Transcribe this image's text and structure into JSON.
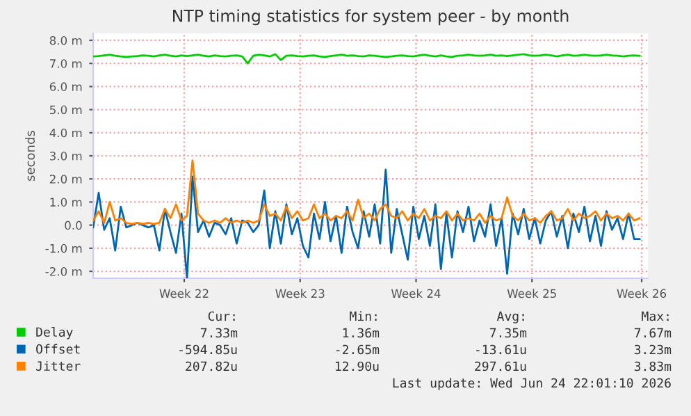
{
  "chart_data": {
    "type": "line",
    "title": "NTP timing statistics for system peer - by month",
    "ylabel": "seconds",
    "x": [
      "2026-05-23T18:00",
      "2026-05-24T02:00",
      "2026-05-24T10:00",
      "2026-05-24T18:00",
      "2026-05-25T02:00",
      "2026-05-25T10:00",
      "2026-05-25T18:00",
      "2026-05-26T02:00",
      "2026-05-26T10:00",
      "2026-05-26T18:00",
      "2026-05-27T02:00",
      "2026-05-27T10:00",
      "2026-05-27T18:00",
      "2026-05-28T02:00",
      "2026-05-28T10:00",
      "2026-05-28T18:00",
      "2026-05-29T02:00",
      "2026-05-29T10:00",
      "2026-05-29T18:00",
      "2026-05-30T02:00",
      "2026-05-30T10:00",
      "2026-05-30T18:00",
      "2026-05-31T02:00",
      "2026-05-31T10:00",
      "2026-05-31T18:00",
      "2026-06-01T02:00",
      "2026-06-01T10:00",
      "2026-06-01T18:00",
      "2026-06-02T02:00",
      "2026-06-02T10:00",
      "2026-06-02T18:00",
      "2026-06-03T02:00",
      "2026-06-03T10:00",
      "2026-06-03T18:00",
      "2026-06-04T02:00",
      "2026-06-04T10:00",
      "2026-06-04T18:00",
      "2026-06-05T02:00",
      "2026-06-05T10:00",
      "2026-06-05T18:00",
      "2026-06-06T02:00",
      "2026-06-06T10:00",
      "2026-06-06T18:00",
      "2026-06-07T02:00",
      "2026-06-07T10:00",
      "2026-06-07T18:00",
      "2026-06-08T02:00",
      "2026-06-08T10:00",
      "2026-06-08T18:00",
      "2026-06-09T02:00",
      "2026-06-09T10:00",
      "2026-06-09T18:00",
      "2026-06-10T02:00",
      "2026-06-10T10:00",
      "2026-06-10T18:00",
      "2026-06-11T02:00",
      "2026-06-11T10:00",
      "2026-06-11T18:00",
      "2026-06-12T02:00",
      "2026-06-12T10:00",
      "2026-06-12T18:00",
      "2026-06-13T02:00",
      "2026-06-13T10:00",
      "2026-06-13T18:00",
      "2026-06-14T02:00",
      "2026-06-14T10:00",
      "2026-06-14T18:00",
      "2026-06-15T02:00",
      "2026-06-15T10:00",
      "2026-06-15T18:00",
      "2026-06-16T02:00",
      "2026-06-16T10:00",
      "2026-06-16T18:00",
      "2026-06-17T02:00",
      "2026-06-17T10:00",
      "2026-06-17T18:00",
      "2026-06-18T02:00",
      "2026-06-18T10:00",
      "2026-06-18T18:00",
      "2026-06-19T02:00",
      "2026-06-19T10:00",
      "2026-06-19T18:00",
      "2026-06-20T02:00",
      "2026-06-20T10:00",
      "2026-06-20T18:00",
      "2026-06-21T02:00",
      "2026-06-21T10:00",
      "2026-06-21T18:00",
      "2026-06-22T02:00",
      "2026-06-22T10:00",
      "2026-06-22T18:00",
      "2026-06-23T02:00",
      "2026-06-23T10:00",
      "2026-06-23T18:00",
      "2026-06-24T02:00",
      "2026-06-24T10:00",
      "2026-06-24T18:00",
      "2026-06-25T02:00",
      "2026-06-25T10:00",
      "2026-06-25T18:00"
    ],
    "series": [
      {
        "name": "Delay",
        "color": "#00cc00",
        "values": [
          7.3,
          7.32,
          7.35,
          7.38,
          7.33,
          7.3,
          7.28,
          7.3,
          7.32,
          7.35,
          7.33,
          7.3,
          7.35,
          7.38,
          7.33,
          7.3,
          7.35,
          7.32,
          7.35,
          7.38,
          7.33,
          7.3,
          7.35,
          7.32,
          7.3,
          7.33,
          7.35,
          7.3,
          7.0,
          7.33,
          7.38,
          7.35,
          7.3,
          7.4,
          7.15,
          7.33,
          7.35,
          7.32,
          7.3,
          7.33,
          7.35,
          7.3,
          7.28,
          7.32,
          7.35,
          7.38,
          7.33,
          7.35,
          7.32,
          7.3,
          7.35,
          7.33,
          7.3,
          7.28,
          7.3,
          7.33,
          7.35,
          7.32,
          7.3,
          7.35,
          7.38,
          7.33,
          7.3,
          7.35,
          7.3,
          7.28,
          7.33,
          7.35,
          7.38,
          7.35,
          7.33,
          7.35,
          7.38,
          7.33,
          7.35,
          7.32,
          7.35,
          7.38,
          7.4,
          7.35,
          7.33,
          7.35,
          7.38,
          7.35,
          7.3,
          7.35,
          7.38,
          7.33,
          7.35,
          7.38,
          7.35,
          7.33,
          7.35,
          7.38,
          7.35,
          7.33,
          7.3,
          7.33,
          7.35,
          7.33
        ]
      },
      {
        "name": "Offset",
        "color": "#0066b3",
        "values": [
          -0.1,
          1.4,
          -0.2,
          0.3,
          -1.1,
          0.8,
          -0.1,
          0.0,
          0.1,
          0.0,
          -0.1,
          0.0,
          -1.1,
          0.7,
          -0.3,
          -1.2,
          0.5,
          -2.3,
          2.1,
          -0.3,
          0.2,
          -0.5,
          0.1,
          0.0,
          -0.4,
          0.3,
          -0.8,
          0.2,
          0.1,
          -0.3,
          0.0,
          1.5,
          -1.0,
          0.6,
          -0.8,
          0.9,
          -0.4,
          0.3,
          -0.9,
          -1.4,
          0.5,
          -0.6,
          1.0,
          -0.7,
          0.4,
          -1.2,
          0.8,
          -0.3,
          -1.0,
          0.6,
          -0.5,
          0.9,
          -0.8,
          2.4,
          -1.2,
          0.7,
          -0.4,
          -1.5,
          0.8,
          -0.6,
          0.4,
          -0.9,
          0.9,
          -1.9,
          0.5,
          -1.4,
          0.6,
          -0.3,
          0.8,
          -0.7,
          0.2,
          -0.5,
          0.9,
          -0.9,
          0.3,
          -2.1,
          0.5,
          -0.4,
          0.7,
          -0.6,
          0.3,
          -0.8,
          0.2,
          0.6,
          -0.5,
          0.4,
          -1.0,
          0.5,
          -0.3,
          0.8,
          -0.7,
          0.4,
          -0.9,
          0.6,
          -0.2,
          0.3,
          -0.6,
          0.5,
          -0.6,
          -0.6
        ]
      },
      {
        "name": "Jitter",
        "color": "#ff8000",
        "values": [
          0.2,
          0.6,
          0.1,
          1.0,
          0.2,
          0.3,
          0.1,
          0.05,
          0.1,
          0.05,
          0.1,
          0.05,
          0.1,
          0.7,
          0.3,
          0.9,
          0.2,
          0.4,
          2.8,
          0.5,
          0.2,
          0.1,
          0.2,
          0.1,
          0.3,
          0.1,
          0.2,
          0.1,
          0.2,
          0.1,
          0.2,
          0.9,
          0.4,
          0.5,
          0.2,
          0.8,
          0.3,
          0.6,
          0.2,
          0.3,
          0.9,
          0.3,
          0.5,
          0.2,
          0.4,
          0.3,
          0.6,
          0.2,
          1.1,
          0.3,
          0.5,
          0.2,
          0.7,
          0.9,
          0.4,
          0.3,
          0.6,
          0.2,
          0.5,
          0.3,
          0.7,
          0.2,
          0.4,
          0.3,
          0.6,
          0.2,
          0.5,
          0.2,
          0.3,
          0.2,
          0.5,
          0.1,
          0.4,
          0.2,
          0.3,
          1.2,
          0.4,
          0.2,
          0.5,
          0.2,
          0.3,
          0.1,
          0.4,
          0.6,
          0.2,
          0.3,
          0.7,
          0.2,
          0.5,
          0.3,
          0.4,
          0.6,
          0.2,
          0.5,
          0.3,
          0.4,
          0.2,
          0.5,
          0.2,
          0.3
        ]
      }
    ],
    "xlim": [
      "2026-05-23T18:00",
      "2026-06-26T06:00"
    ],
    "xticks": [
      {
        "value": "2026-05-29T06:00",
        "label": "Week 22"
      },
      {
        "value": "2026-06-05T06:00",
        "label": "Week 23"
      },
      {
        "value": "2026-06-12T06:00",
        "label": "Week 24"
      },
      {
        "value": "2026-06-19T06:00",
        "label": "Week 25"
      },
      {
        "value": "2026-06-25T21:00",
        "label": "Week 26"
      }
    ],
    "ylim": [
      -2.3,
      8.3
    ],
    "yticks": [
      {
        "value": -2,
        "label": "-2.0 m"
      },
      {
        "value": -1,
        "label": "-1.0 m"
      },
      {
        "value": 0,
        "label": "0.0"
      },
      {
        "value": 1,
        "label": "1.0 m"
      },
      {
        "value": 2,
        "label": "2.0 m"
      },
      {
        "value": 3,
        "label": "3.0 m"
      },
      {
        "value": 4,
        "label": "4.0 m"
      },
      {
        "value": 5,
        "label": "5.0 m"
      },
      {
        "value": 6,
        "label": "6.0 m"
      },
      {
        "value": 7,
        "label": "7.0 m"
      },
      {
        "value": 8,
        "label": "8.0 m"
      }
    ],
    "grid": true,
    "legend": "bottom left",
    "marker": "none",
    "line_style": "solid",
    "annotations": [
      "Cur:",
      "Min:",
      "Avg:",
      "Max:",
      "7.33m",
      "1.36m",
      "7.35m",
      "7.67m",
      "-594.85u",
      "-2.65m",
      "-13.61u",
      "3.23m",
      "207.82u",
      "12.90u",
      "297.61u",
      "3.83m",
      "Last update: Wed Jun 24 22:01:10 2026"
    ]
  }
}
